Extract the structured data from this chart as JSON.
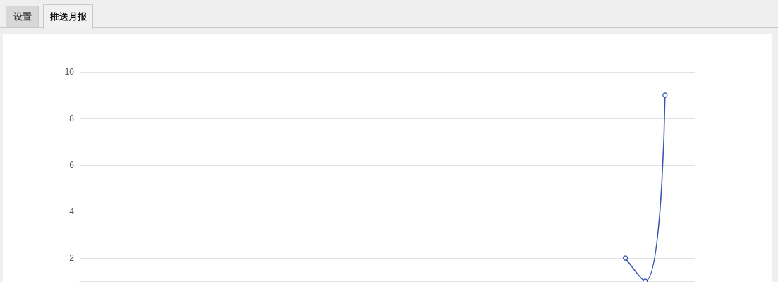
{
  "chart_data": {
    "type": "line",
    "annotations": [
      "设置",
      "推送月报"
    ],
    "categories": [
      null,
      null,
      null,
      null,
      null,
      null,
      null,
      null,
      null,
      null,
      null,
      null,
      null,
      null,
      null,
      null,
      null,
      null,
      null,
      null,
      null,
      null,
      null,
      null,
      null,
      null,
      null,
      null,
      null,
      null,
      null
    ],
    "values": [
      null,
      null,
      null,
      null,
      null,
      null,
      null,
      null,
      null,
      null,
      null,
      null,
      null,
      null,
      null,
      null,
      null,
      null,
      null,
      null,
      null,
      null,
      null,
      null,
      null,
      null,
      null,
      2,
      1,
      9,
      null
    ],
    "color": "#3b56b3",
    "ylim": [
      1,
      10
    ],
    "yticks": [
      2,
      4,
      6,
      8,
      10
    ],
    "grid": "y",
    "marker": "circle",
    "line_style": "solid",
    "tick_labels": "y"
  }
}
